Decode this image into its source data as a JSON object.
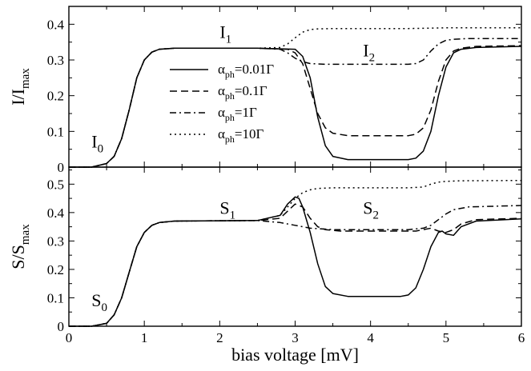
{
  "chart_data": [
    {
      "type": "line",
      "panel": "top",
      "ylabel": "I/I",
      "ylabel_sub": "max",
      "xlabel": "",
      "xlim": [
        0,
        6
      ],
      "ylim": [
        0,
        0.45
      ],
      "x_ticks": [
        0,
        1,
        2,
        3,
        4,
        5,
        6
      ],
      "x_tick_labels": [
        "",
        "",
        "",
        "",
        "",
        "",
        ""
      ],
      "y_ticks": [
        0,
        0.1,
        0.2,
        0.3,
        0.4
      ],
      "y_tick_labels": [
        "0",
        "0.1",
        "0.2",
        "0.3",
        "0.4"
      ],
      "grid": false,
      "legend": {
        "placement": "center-left",
        "entries": [
          {
            "prefix": "α",
            "sub": "ph",
            "suffix": "=0.01Γ",
            "style": "solid"
          },
          {
            "prefix": "α",
            "sub": "ph",
            "suffix": "=0.1Γ",
            "style": "dashed"
          },
          {
            "prefix": "α",
            "sub": "ph",
            "suffix": "=1Γ",
            "style": "dashdot"
          },
          {
            "prefix": "α",
            "sub": "ph",
            "suffix": "=10Γ",
            "style": "dotted"
          }
        ]
      },
      "annotations": [
        {
          "main": "I",
          "sub": "0",
          "x": 0.3,
          "y": 0.055
        },
        {
          "main": "I",
          "sub": "1",
          "x": 2.0,
          "y": 0.362
        },
        {
          "main": "I",
          "sub": "2",
          "x": 3.9,
          "y": 0.31
        }
      ],
      "series": [
        {
          "style": "solid",
          "x": [
            0,
            0.3,
            0.5,
            0.6,
            0.7,
            0.8,
            0.9,
            1.0,
            1.1,
            1.2,
            1.4,
            2.5,
            3.0,
            3.1,
            3.2,
            3.3,
            3.4,
            3.5,
            3.7,
            4.5,
            4.6,
            4.7,
            4.8,
            4.9,
            5.0,
            5.1,
            5.2,
            5.4,
            6.0
          ],
          "y": [
            0,
            0,
            0.01,
            0.03,
            0.08,
            0.16,
            0.25,
            0.3,
            0.322,
            0.33,
            0.333,
            0.333,
            0.33,
            0.31,
            0.25,
            0.14,
            0.06,
            0.03,
            0.021,
            0.021,
            0.025,
            0.045,
            0.1,
            0.2,
            0.28,
            0.32,
            0.33,
            0.335,
            0.338
          ]
        },
        {
          "style": "dashed",
          "x": [
            0,
            0.3,
            0.5,
            0.6,
            0.7,
            0.8,
            0.9,
            1.0,
            1.1,
            1.2,
            1.4,
            2.5,
            2.9,
            3.0,
            3.1,
            3.2,
            3.3,
            3.4,
            3.5,
            3.7,
            4.5,
            4.6,
            4.7,
            4.8,
            4.9,
            5.0,
            5.1,
            5.2,
            5.4,
            6.0
          ],
          "y": [
            0,
            0,
            0.01,
            0.03,
            0.08,
            0.16,
            0.25,
            0.3,
            0.322,
            0.33,
            0.333,
            0.333,
            0.33,
            0.32,
            0.29,
            0.22,
            0.15,
            0.11,
            0.095,
            0.088,
            0.088,
            0.092,
            0.11,
            0.16,
            0.24,
            0.3,
            0.325,
            0.333,
            0.338,
            0.34
          ]
        },
        {
          "style": "dashdot",
          "x": [
            0,
            0.3,
            0.5,
            0.6,
            0.7,
            0.8,
            0.9,
            1.0,
            1.1,
            1.2,
            1.4,
            2.5,
            2.8,
            2.9,
            3.0,
            3.1,
            3.2,
            3.4,
            4.5,
            4.6,
            4.7,
            4.8,
            4.9,
            5.0,
            5.1,
            5.3,
            6.0
          ],
          "y": [
            0,
            0,
            0.01,
            0.03,
            0.08,
            0.16,
            0.25,
            0.3,
            0.322,
            0.33,
            0.333,
            0.333,
            0.33,
            0.32,
            0.305,
            0.295,
            0.29,
            0.288,
            0.288,
            0.29,
            0.3,
            0.325,
            0.345,
            0.355,
            0.358,
            0.36,
            0.36
          ]
        },
        {
          "style": "dotted",
          "x": [
            0,
            0.3,
            0.5,
            0.6,
            0.7,
            0.8,
            0.9,
            1.0,
            1.1,
            1.2,
            1.4,
            2.5,
            2.8,
            2.9,
            3.0,
            3.1,
            3.2,
            3.3,
            3.5,
            4.5,
            5.0,
            6.0
          ],
          "y": [
            0,
            0,
            0.01,
            0.03,
            0.08,
            0.16,
            0.25,
            0.3,
            0.322,
            0.33,
            0.333,
            0.333,
            0.335,
            0.345,
            0.362,
            0.378,
            0.385,
            0.387,
            0.388,
            0.388,
            0.39,
            0.39
          ]
        }
      ]
    },
    {
      "type": "line",
      "panel": "bottom",
      "ylabel": "S/S",
      "ylabel_sub": "max",
      "xlabel": "bias voltage [mV]",
      "xlim": [
        0,
        6
      ],
      "ylim": [
        0,
        0.56
      ],
      "x_ticks": [
        0,
        1,
        2,
        3,
        4,
        5,
        6
      ],
      "x_tick_labels": [
        "0",
        "1",
        "2",
        "3",
        "4",
        "5",
        "6"
      ],
      "y_ticks": [
        0,
        0.1,
        0.2,
        0.3,
        0.4,
        0.5
      ],
      "y_tick_labels": [
        "0",
        "0.1",
        "0.2",
        "0.3",
        "0.4",
        "0.5"
      ],
      "grid": false,
      "annotations": [
        {
          "main": "S",
          "sub": "0",
          "x": 0.3,
          "y": 0.07
        },
        {
          "main": "S",
          "sub": "1",
          "x": 2.0,
          "y": 0.395
        },
        {
          "main": "S",
          "sub": "2",
          "x": 3.9,
          "y": 0.395
        }
      ],
      "series": [
        {
          "style": "solid",
          "x": [
            0,
            0.3,
            0.5,
            0.6,
            0.7,
            0.8,
            0.9,
            1.0,
            1.1,
            1.2,
            1.4,
            2.5,
            2.8,
            2.9,
            3.0,
            3.05,
            3.1,
            3.2,
            3.3,
            3.4,
            3.5,
            3.7,
            4.4,
            4.5,
            4.6,
            4.7,
            4.8,
            4.9,
            4.95,
            5.0,
            5.1,
            5.2,
            5.4,
            6.0
          ],
          "y": [
            0,
            0,
            0.01,
            0.04,
            0.1,
            0.19,
            0.28,
            0.33,
            0.355,
            0.365,
            0.37,
            0.372,
            0.39,
            0.43,
            0.455,
            0.45,
            0.42,
            0.33,
            0.22,
            0.14,
            0.115,
            0.105,
            0.105,
            0.11,
            0.135,
            0.2,
            0.28,
            0.33,
            0.335,
            0.325,
            0.32,
            0.35,
            0.37,
            0.378
          ]
        },
        {
          "style": "dashed",
          "x": [
            0,
            0.3,
            0.5,
            0.6,
            0.7,
            0.8,
            0.9,
            1.0,
            1.1,
            1.2,
            1.4,
            2.5,
            2.8,
            2.9,
            3.0,
            3.1,
            3.2,
            3.3,
            3.4,
            3.6,
            4.6,
            4.8,
            4.9,
            5.0,
            5.1,
            5.2,
            5.4,
            6.0
          ],
          "y": [
            0,
            0,
            0.01,
            0.04,
            0.1,
            0.19,
            0.28,
            0.33,
            0.355,
            0.365,
            0.37,
            0.372,
            0.38,
            0.405,
            0.43,
            0.42,
            0.38,
            0.35,
            0.34,
            0.335,
            0.335,
            0.345,
            0.335,
            0.33,
            0.34,
            0.36,
            0.375,
            0.38
          ]
        },
        {
          "style": "dashdot",
          "x": [
            0,
            0.3,
            0.5,
            0.6,
            0.7,
            0.8,
            0.9,
            1.0,
            1.1,
            1.2,
            1.4,
            2.5,
            2.8,
            3.0,
            3.2,
            3.5,
            4.5,
            4.7,
            4.8,
            4.9,
            5.0,
            5.1,
            5.3,
            6.0
          ],
          "y": [
            0,
            0,
            0.01,
            0.04,
            0.1,
            0.19,
            0.28,
            0.33,
            0.355,
            0.365,
            0.37,
            0.372,
            0.365,
            0.355,
            0.345,
            0.34,
            0.34,
            0.345,
            0.355,
            0.375,
            0.395,
            0.41,
            0.42,
            0.425
          ]
        },
        {
          "style": "dotted",
          "x": [
            0,
            0.3,
            0.5,
            0.6,
            0.7,
            0.8,
            0.9,
            1.0,
            1.1,
            1.2,
            1.4,
            2.5,
            2.8,
            2.9,
            3.0,
            3.1,
            3.2,
            3.3,
            3.5,
            4.5,
            4.7,
            4.8,
            4.9,
            5.0,
            5.2,
            6.0
          ],
          "y": [
            0,
            0,
            0.01,
            0.04,
            0.1,
            0.19,
            0.28,
            0.33,
            0.355,
            0.365,
            0.37,
            0.372,
            0.39,
            0.42,
            0.45,
            0.47,
            0.48,
            0.485,
            0.487,
            0.487,
            0.49,
            0.5,
            0.507,
            0.51,
            0.512,
            0.513
          ]
        }
      ]
    }
  ]
}
